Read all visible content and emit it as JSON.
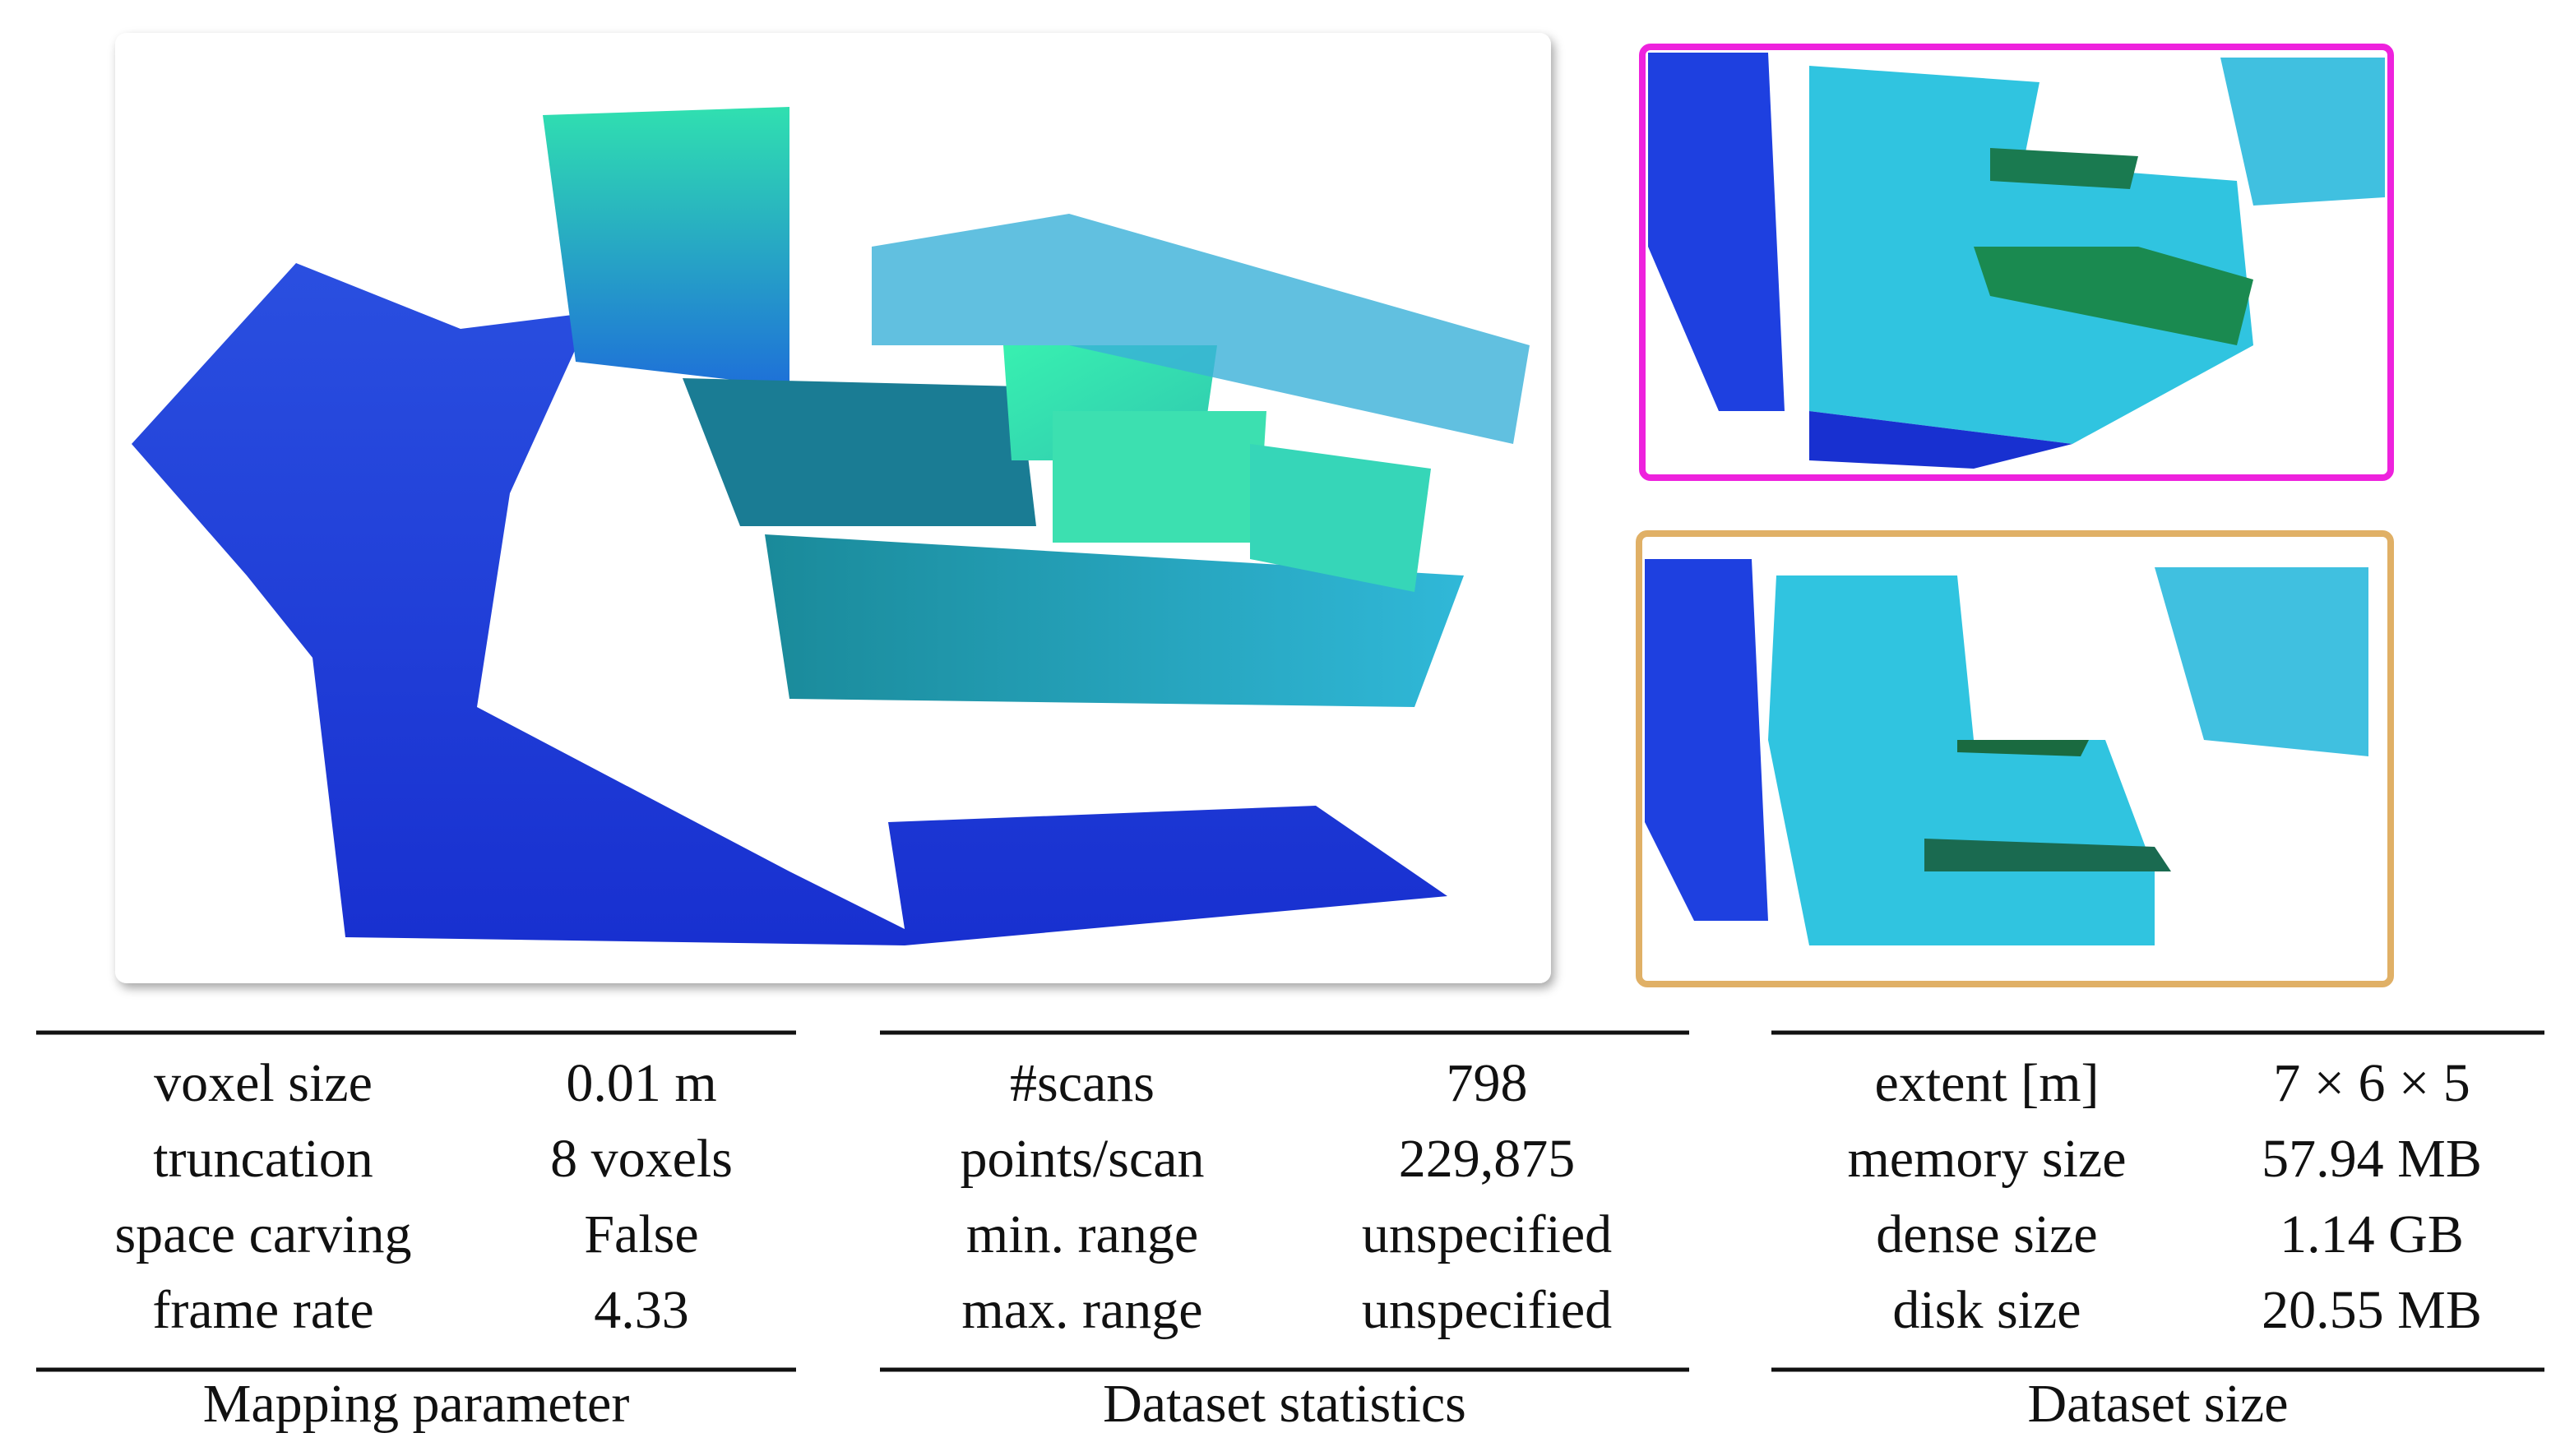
{
  "tables": [
    {
      "caption": "Mapping parameter",
      "rows": [
        [
          "voxel size",
          "0.01 m"
        ],
        [
          "truncation",
          "8 voxels"
        ],
        [
          "space carving",
          "False"
        ],
        [
          "frame rate",
          "4.33"
        ]
      ]
    },
    {
      "caption": "Dataset statistics",
      "rows": [
        [
          "#scans",
          "798"
        ],
        [
          "points/scan",
          "229,875"
        ],
        [
          "min. range",
          "unspecified"
        ],
        [
          "max. range",
          "unspecified"
        ]
      ]
    },
    {
      "caption": "Dataset size",
      "rows": [
        [
          "extent [m]",
          "7 × 6 × 5"
        ],
        [
          "memory size",
          "57.94 MB"
        ],
        [
          "dense size",
          "1.14 GB"
        ],
        [
          "disk size",
          "20.55 MB"
        ]
      ]
    }
  ]
}
